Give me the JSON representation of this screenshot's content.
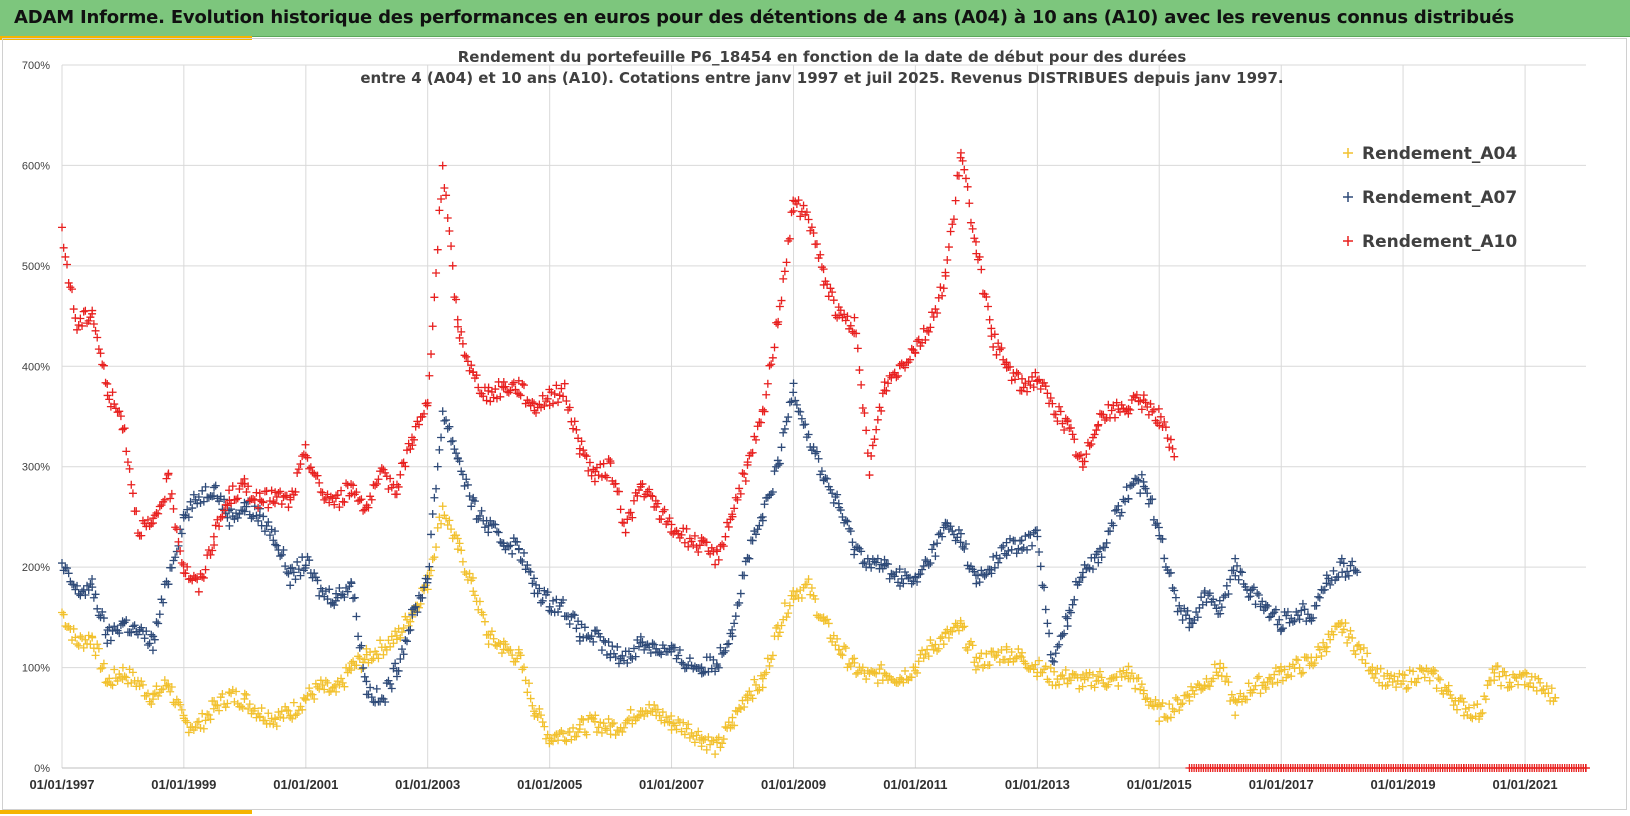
{
  "header": {
    "title": "ADAM Informe. Evolution historique des performances en euros pour des détentions de 4 ans (A04) à 10 ans (A10) avec les revenus connus distribués"
  },
  "colors": {
    "banner": "#7dc67d",
    "accent": "#f5b400",
    "A04": "#f2c12e",
    "A07": "#2e4a78",
    "A10": "#e8201f"
  },
  "chart_data": {
    "type": "scatter",
    "title": [
      "Rendement du portefeuille P6_18454 en fonction de la date de début pour des durées",
      "entre 4 (A04) et 10 ans (A10). Cotations  entre janv 1997 et juil 2025. Revenus DISTRIBUES depuis janv 1997."
    ],
    "xlabel": "",
    "ylabel": "",
    "xlim": [
      "1997-01-01",
      "2022-01-01"
    ],
    "ylim": [
      0,
      7
    ],
    "y_ticks": [
      "0%",
      "100%",
      "200%",
      "300%",
      "400%",
      "500%",
      "600%",
      "700%"
    ],
    "x_ticks": [
      "01/01/1997",
      "01/01/1999",
      "01/01/2001",
      "01/01/2003",
      "01/01/2005",
      "01/01/2007",
      "01/01/2009",
      "01/01/2011",
      "01/01/2013",
      "01/01/2015",
      "01/01/2017",
      "01/01/2019",
      "01/01/2021"
    ],
    "grid": true,
    "legend": "top-right",
    "marker": "+",
    "series": [
      {
        "name": "Rendement_A04",
        "color": "#f2c12e",
        "x": [
          "1997-01-01",
          "1997-04-01",
          "1997-07-01",
          "1997-10-01",
          "1998-01-01",
          "1998-04-01",
          "1998-07-01",
          "1998-10-01",
          "1999-01-01",
          "1999-04-01",
          "1999-07-01",
          "1999-10-01",
          "2000-01-01",
          "2000-04-01",
          "2000-07-01",
          "2000-10-01",
          "2001-01-01",
          "2001-04-01",
          "2001-07-01",
          "2001-10-01",
          "2002-01-01",
          "2002-04-01",
          "2002-07-01",
          "2002-10-01",
          "2003-01-01",
          "2003-04-01",
          "2003-07-01",
          "2003-10-01",
          "2004-01-01",
          "2004-04-01",
          "2004-07-01",
          "2004-10-01",
          "2005-01-01",
          "2005-04-01",
          "2005-07-01",
          "2005-10-01",
          "2006-01-01",
          "2006-04-01",
          "2006-07-01",
          "2006-10-01",
          "2007-01-01",
          "2007-04-01",
          "2007-07-01",
          "2007-10-01",
          "2008-01-01",
          "2008-04-01",
          "2008-07-01",
          "2008-10-01",
          "2009-01-01",
          "2009-04-01",
          "2009-07-01",
          "2009-10-01",
          "2010-01-01",
          "2010-04-01",
          "2010-07-01",
          "2010-10-01",
          "2011-01-01",
          "2011-04-01",
          "2011-07-01",
          "2011-10-01",
          "2012-01-01",
          "2012-04-01",
          "2012-07-01",
          "2012-10-01",
          "2013-01-01",
          "2013-04-01",
          "2013-07-01",
          "2013-10-01",
          "2014-01-01",
          "2014-04-01",
          "2014-07-01",
          "2014-10-01",
          "2015-01-01",
          "2015-04-01",
          "2015-07-01",
          "2015-10-01",
          "2016-01-01",
          "2016-04-01",
          "2016-07-01",
          "2016-10-01",
          "2017-01-01",
          "2017-04-01",
          "2017-07-01",
          "2017-10-01",
          "2018-01-01",
          "2018-04-01",
          "2018-07-01",
          "2018-10-01",
          "2019-01-01",
          "2019-04-01",
          "2019-07-01",
          "2019-10-01",
          "2020-01-01",
          "2020-04-01",
          "2020-07-01",
          "2020-10-01",
          "2021-01-01",
          "2021-04-01",
          "2021-07-01"
        ],
        "y": [
          1.55,
          1.25,
          1.3,
          0.85,
          0.95,
          0.85,
          0.7,
          0.85,
          0.45,
          0.42,
          0.6,
          0.72,
          0.68,
          0.55,
          0.5,
          0.55,
          0.7,
          0.8,
          0.75,
          1.0,
          1.1,
          1.2,
          1.3,
          1.55,
          1.85,
          2.6,
          2.2,
          1.8,
          1.3,
          1.2,
          1.1,
          0.6,
          0.3,
          0.35,
          0.4,
          0.45,
          0.4,
          0.45,
          0.6,
          0.55,
          0.45,
          0.4,
          0.3,
          0.2,
          0.45,
          0.75,
          0.85,
          1.4,
          1.75,
          1.8,
          1.45,
          1.2,
          1.0,
          0.9,
          0.95,
          0.9,
          1.0,
          1.2,
          1.3,
          1.4,
          1.05,
          1.1,
          1.15,
          1.1,
          1.0,
          0.9,
          0.9,
          0.85,
          0.9,
          0.85,
          0.95,
          0.75,
          0.55,
          0.6,
          0.75,
          0.85,
          1.0,
          0.6,
          0.8,
          0.85,
          0.95,
          1.0,
          1.05,
          1.25,
          1.4,
          1.2,
          1.0,
          0.85,
          0.85,
          0.95,
          0.9,
          0.75,
          0.6,
          0.55,
          0.95,
          0.85,
          0.9,
          0.8,
          0.7
        ]
      },
      {
        "name": "Rendement_A07",
        "color": "#2e4a78",
        "x": [
          "1997-01-01",
          "1997-04-01",
          "1997-07-01",
          "1997-10-01",
          "1998-01-01",
          "1998-04-01",
          "1998-07-01",
          "1998-10-01",
          "1999-01-01",
          "1999-04-01",
          "1999-07-01",
          "1999-10-01",
          "2000-01-01",
          "2000-04-01",
          "2000-07-01",
          "2000-10-01",
          "2001-01-01",
          "2001-04-01",
          "2001-07-01",
          "2001-10-01",
          "2002-01-01",
          "2002-04-01",
          "2002-07-01",
          "2002-10-01",
          "2003-01-01",
          "2003-04-01",
          "2003-07-01",
          "2003-10-01",
          "2004-01-01",
          "2004-04-01",
          "2004-07-01",
          "2004-10-01",
          "2005-01-01",
          "2005-04-01",
          "2005-07-01",
          "2005-10-01",
          "2006-01-01",
          "2006-04-01",
          "2006-07-01",
          "2006-10-01",
          "2007-01-01",
          "2007-04-01",
          "2007-07-01",
          "2007-10-01",
          "2008-01-01",
          "2008-04-01",
          "2008-07-01",
          "2008-10-01",
          "2009-01-01",
          "2009-04-01",
          "2009-07-01",
          "2009-10-01",
          "2010-01-01",
          "2010-04-01",
          "2010-07-01",
          "2010-10-01",
          "2011-01-01",
          "2011-04-01",
          "2011-07-01",
          "2011-10-01",
          "2012-01-01",
          "2012-04-01",
          "2012-07-01",
          "2012-10-01",
          "2013-01-01",
          "2013-04-01",
          "2013-07-01",
          "2013-10-01",
          "2014-01-01",
          "2014-04-01",
          "2014-07-01",
          "2014-10-01",
          "2015-01-01",
          "2015-04-01",
          "2015-07-01",
          "2015-10-01",
          "2016-01-01",
          "2016-04-01",
          "2016-07-01",
          "2016-10-01",
          "2017-01-01",
          "2017-04-01",
          "2017-07-01",
          "2017-10-01",
          "2018-01-01",
          "2018-04-01"
        ],
        "y": [
          2.0,
          1.75,
          1.8,
          1.3,
          1.45,
          1.35,
          1.25,
          1.9,
          2.5,
          2.7,
          2.8,
          2.5,
          2.6,
          2.5,
          2.3,
          1.9,
          2.05,
          1.75,
          1.7,
          1.85,
          0.8,
          0.65,
          1.0,
          1.5,
          1.9,
          3.55,
          3.1,
          2.6,
          2.4,
          2.25,
          2.2,
          1.8,
          1.65,
          1.6,
          1.35,
          1.3,
          1.15,
          1.1,
          1.25,
          1.2,
          1.15,
          1.05,
          1.0,
          1.05,
          1.4,
          2.1,
          2.5,
          3.0,
          3.8,
          3.3,
          2.9,
          2.6,
          2.2,
          2.05,
          2.0,
          1.9,
          1.85,
          2.1,
          2.4,
          2.3,
          1.85,
          2.0,
          2.2,
          2.2,
          2.35,
          1.0,
          1.5,
          2.0,
          2.1,
          2.45,
          2.75,
          2.85,
          2.4,
          1.7,
          1.45,
          1.7,
          1.6,
          2.0,
          1.75,
          1.6,
          1.45,
          1.55,
          1.55,
          1.85,
          2.0,
          1.95
        ]
      },
      {
        "name": "Rendement_A10",
        "color": "#e8201f",
        "x": [
          "1997-01-01",
          "1997-04-01",
          "1997-07-01",
          "1997-10-01",
          "1998-01-01",
          "1998-04-01",
          "1998-07-01",
          "1998-10-01",
          "1999-01-01",
          "1999-04-01",
          "1999-07-01",
          "1999-10-01",
          "2000-01-01",
          "2000-04-01",
          "2000-07-01",
          "2000-10-01",
          "2001-01-01",
          "2001-04-01",
          "2001-07-01",
          "2001-10-01",
          "2002-01-01",
          "2002-04-01",
          "2002-07-01",
          "2002-10-01",
          "2003-01-01",
          "2003-04-01",
          "2003-07-01",
          "2003-10-01",
          "2004-01-01",
          "2004-04-01",
          "2004-07-01",
          "2004-10-01",
          "2005-01-01",
          "2005-04-01",
          "2005-07-01",
          "2005-10-01",
          "2006-01-01",
          "2006-04-01",
          "2006-07-01",
          "2006-10-01",
          "2007-01-01",
          "2007-04-01",
          "2007-07-01",
          "2007-10-01",
          "2008-01-01",
          "2008-04-01",
          "2008-07-01",
          "2008-10-01",
          "2009-01-01",
          "2009-04-01",
          "2009-07-01",
          "2009-10-01",
          "2010-01-01",
          "2010-04-01",
          "2010-07-01",
          "2010-10-01",
          "2011-01-01",
          "2011-04-01",
          "2011-07-01",
          "2011-10-01",
          "2012-01-01",
          "2012-04-01",
          "2012-07-01",
          "2012-10-01",
          "2013-01-01",
          "2013-04-01",
          "2013-07-01",
          "2013-10-01",
          "2014-01-01",
          "2014-04-01",
          "2014-07-01",
          "2014-10-01",
          "2015-01-01",
          "2015-04-01"
        ],
        "y": [
          5.3,
          4.4,
          4.55,
          3.75,
          3.45,
          2.4,
          2.4,
          2.85,
          2.0,
          1.8,
          2.3,
          2.7,
          2.8,
          2.65,
          2.7,
          2.65,
          3.15,
          2.75,
          2.65,
          2.8,
          2.6,
          2.9,
          2.8,
          3.3,
          3.6,
          6.0,
          4.4,
          3.9,
          3.7,
          3.8,
          3.8,
          3.6,
          3.7,
          3.75,
          3.2,
          2.9,
          3.0,
          2.4,
          2.8,
          2.6,
          2.4,
          2.3,
          2.2,
          2.1,
          2.55,
          3.0,
          3.5,
          4.5,
          5.6,
          5.5,
          4.9,
          4.5,
          4.4,
          3.0,
          3.8,
          4.0,
          4.2,
          4.4,
          4.9,
          6.1,
          5.2,
          4.3,
          4.0,
          3.8,
          3.9,
          3.6,
          3.4,
          3.0,
          3.5,
          3.55,
          3.6,
          3.65,
          3.5,
          3.1
        ]
      },
      {
        "name": "",
        "color": "#e8201f",
        "x": [
          "2015-07-01",
          "2016-01-01",
          "2016-07-01",
          "2017-01-01",
          "2017-07-01",
          "2018-01-01",
          "2018-07-01",
          "2019-01-01",
          "2019-07-01",
          "2020-01-01",
          "2020-07-01",
          "2021-01-01",
          "2021-07-01",
          "2022-01-01"
        ],
        "y": [
          0,
          0,
          0,
          0,
          0,
          0,
          0,
          0,
          0,
          0,
          0,
          0,
          0,
          0
        ]
      }
    ]
  }
}
